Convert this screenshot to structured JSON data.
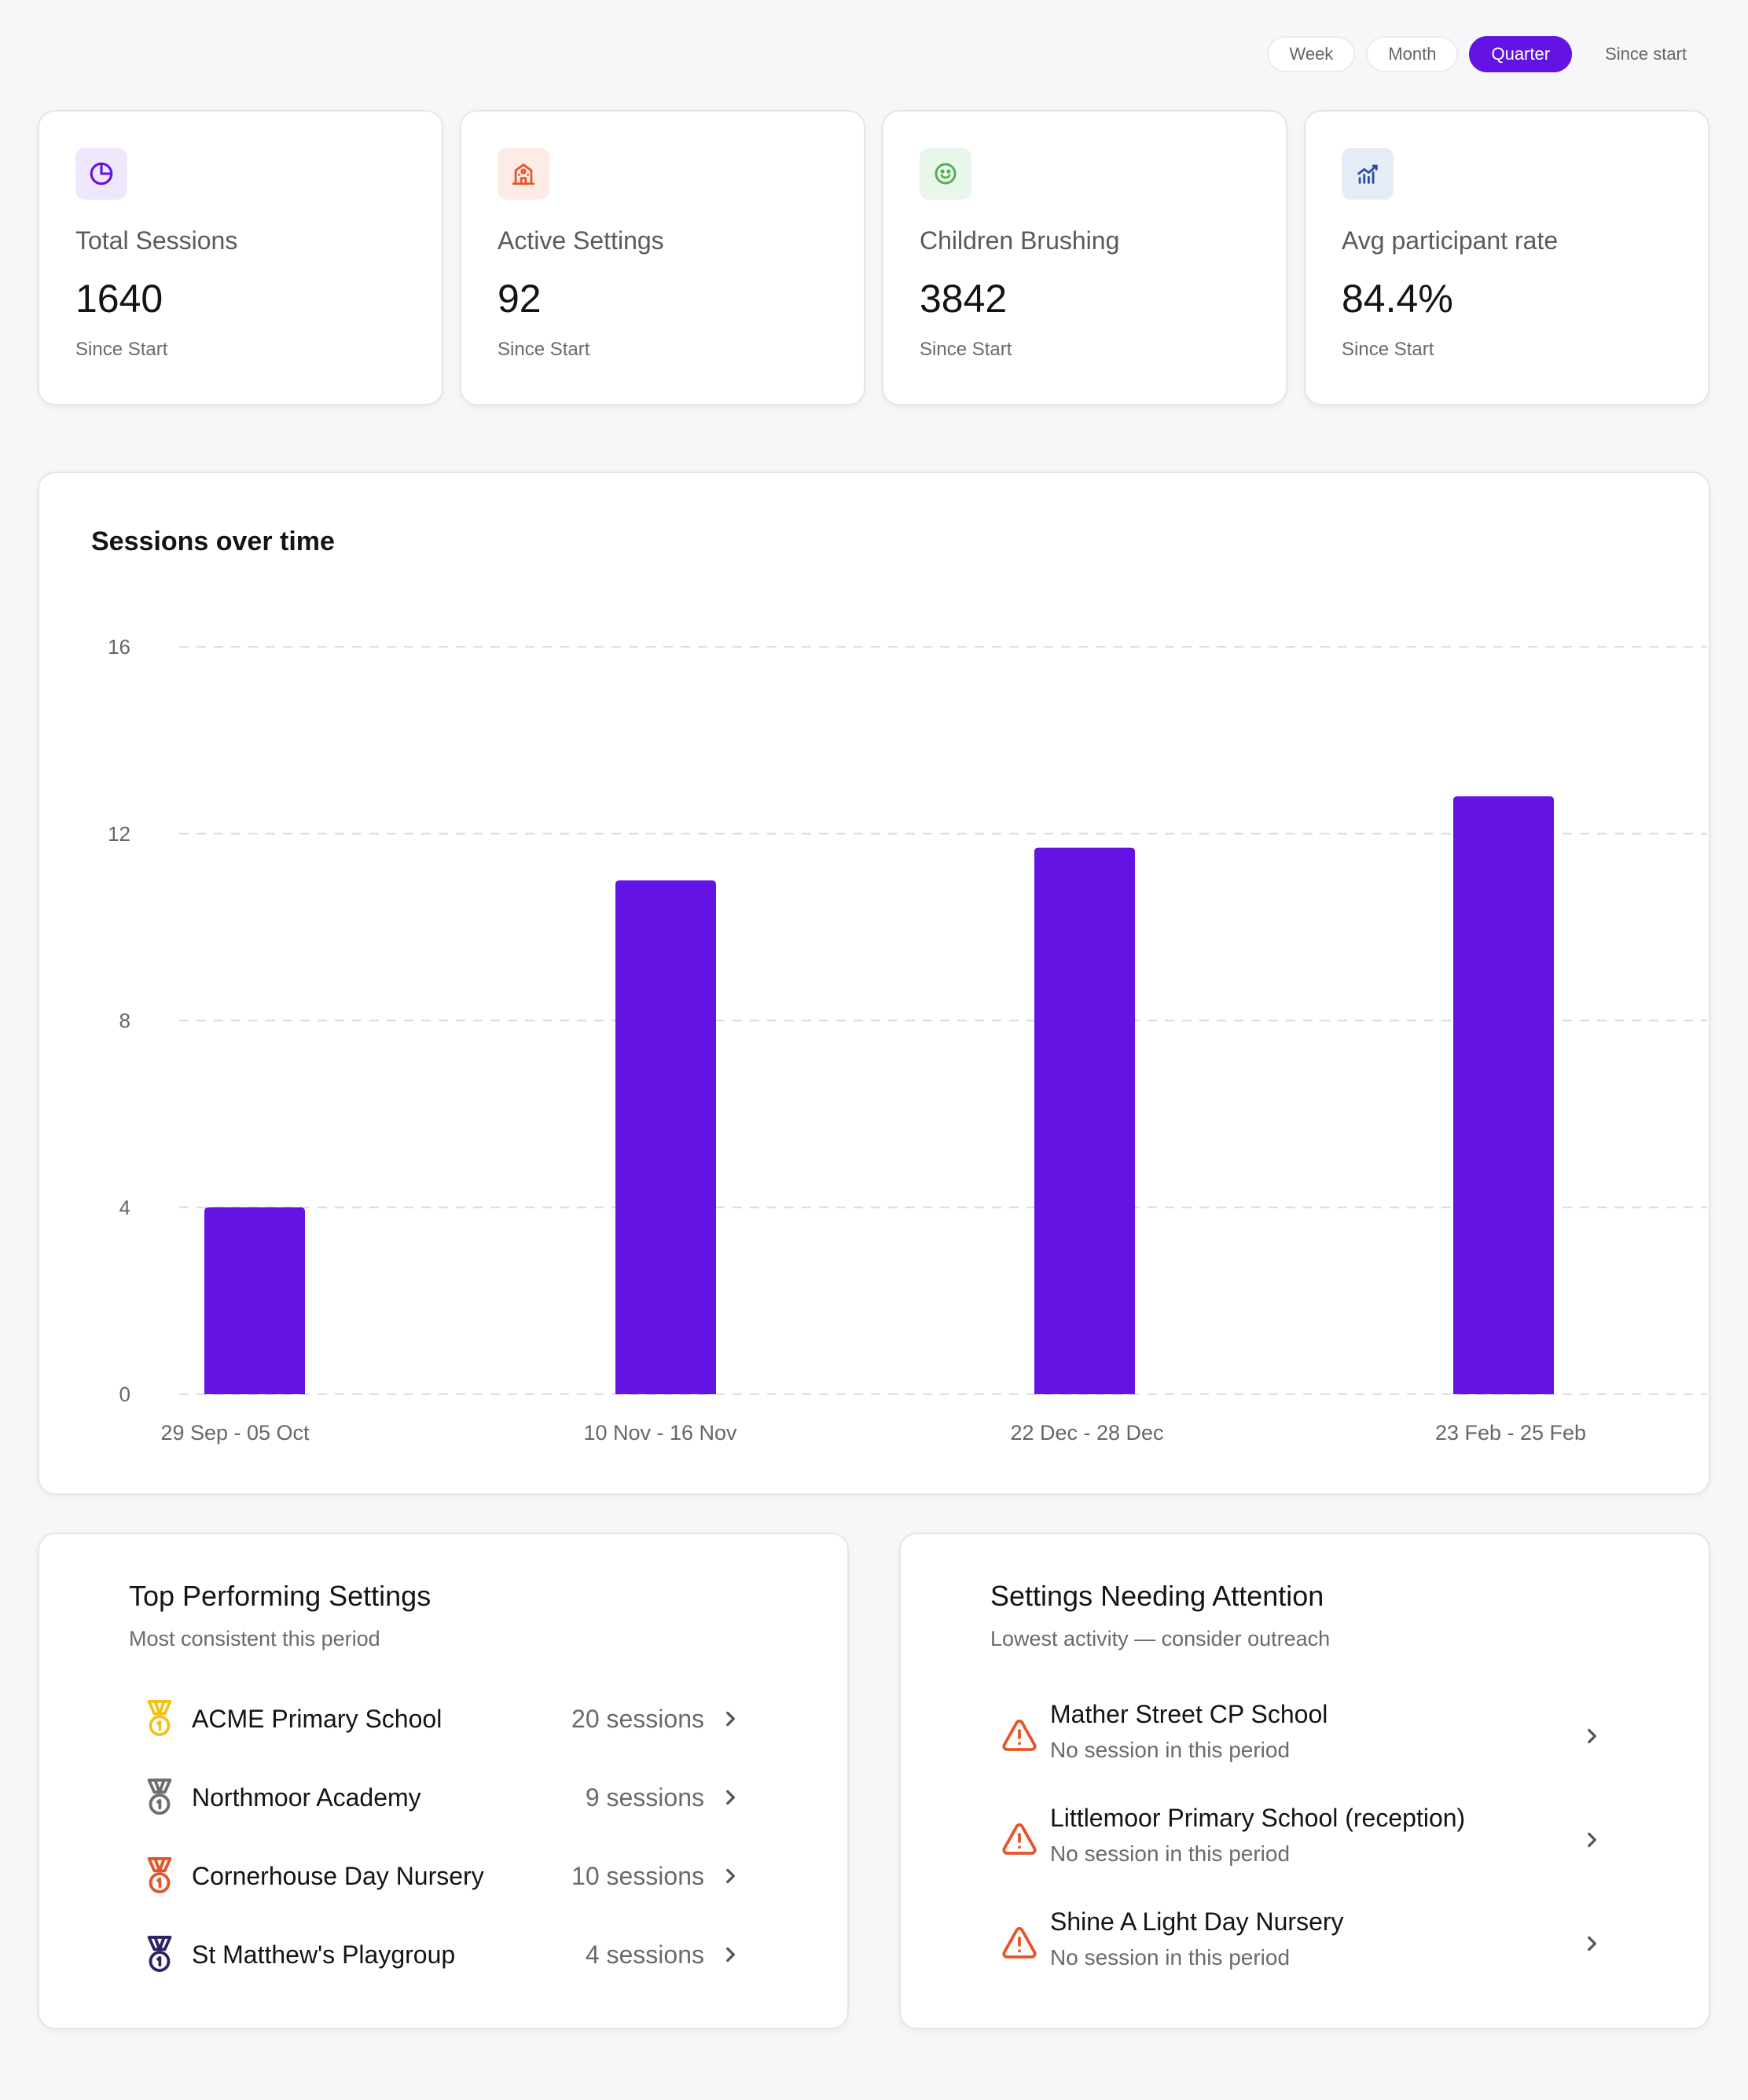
{
  "period_filter": {
    "options": [
      "Week",
      "Month",
      "Quarter",
      "Since start"
    ],
    "selected": "Quarter"
  },
  "stats": [
    {
      "label": "Total Sessions",
      "value": "1640",
      "sub": "Since Start",
      "icon": "pie-chart-icon",
      "color": "#6313e4",
      "bg": "#efe7fb"
    },
    {
      "label": "Active Settings",
      "value": "92",
      "sub": "Since Start",
      "icon": "school-building-icon",
      "color": "#e4552b",
      "bg": "#fdece6"
    },
    {
      "label": "Children Brushing",
      "value": "3842",
      "sub": "Since Start",
      "icon": "smiley-face-icon",
      "color": "#4caf50",
      "bg": "#e9f6ea"
    },
    {
      "label": "Avg participant rate",
      "value": "84.4%",
      "sub": "Since Start",
      "icon": "bar-chart-trend-icon",
      "color": "#2d4f9e",
      "bg": "#e6ecf6"
    }
  ],
  "chart": {
    "title": "Sessions over time"
  },
  "chart_data": {
    "type": "bar",
    "categories": [
      "29 Sep - 05 Oct",
      "10 Nov - 16 Nov",
      "22 Dec - 28 Dec",
      "23 Feb - 25 Feb"
    ],
    "values": [
      4,
      11,
      11.7,
      12.8
    ],
    "title": "Sessions over time",
    "xlabel": "",
    "ylabel": "",
    "ylim": [
      0,
      16
    ],
    "yticks": [
      0,
      4,
      8,
      12,
      16
    ],
    "grid": true,
    "bar_color": "#6313e4"
  },
  "top_performing": {
    "title": "Top Performing Settings",
    "subtitle": "Most consistent this period",
    "items": [
      {
        "name": "ACME Primary School",
        "count": "20 sessions",
        "medal": "gold-medal-icon",
        "color": "#f2c21b"
      },
      {
        "name": "Northmoor Academy",
        "count": "9 sessions",
        "medal": "silver-medal-icon",
        "color": "#6e6e6e"
      },
      {
        "name": "Cornerhouse Day Nursery",
        "count": "10 sessions",
        "medal": "bronze-medal-icon",
        "color": "#e4552b"
      },
      {
        "name": "St Matthew's Playgroup",
        "count": "4 sessions",
        "medal": "medal-icon",
        "color": "#2b2466"
      }
    ]
  },
  "needing_attention": {
    "title": "Settings Needing Attention",
    "subtitle": "Lowest activity — consider outreach",
    "items": [
      {
        "name": "Mather Street CP School",
        "note": "No session in this period"
      },
      {
        "name": "Littlemoor Primary School (reception)",
        "note": "No session in this period"
      },
      {
        "name": "Shine A Light Day Nursery",
        "note": "No session in this period"
      }
    ],
    "warn_color": "#e4552b"
  }
}
